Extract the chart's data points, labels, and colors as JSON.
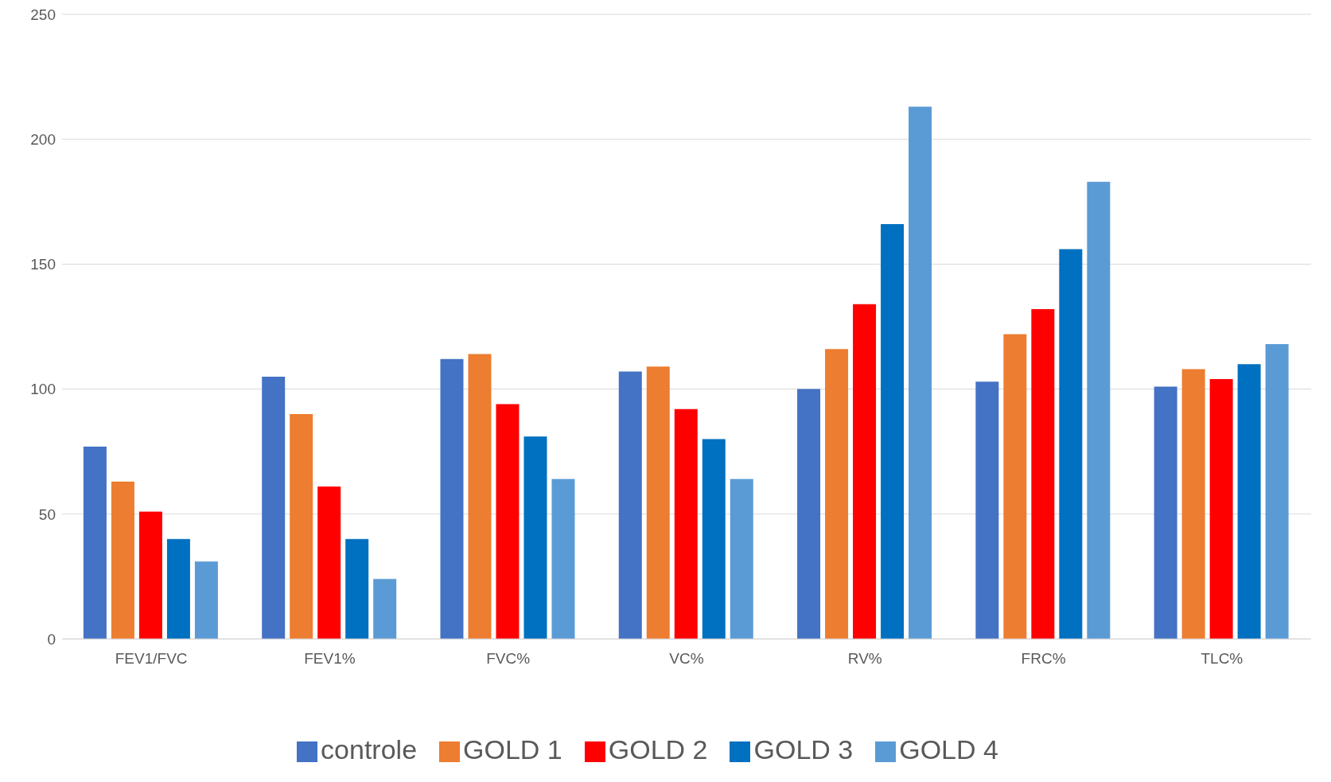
{
  "chart_data": {
    "type": "bar",
    "categories": [
      "FEV1/FVC",
      "FEV1%",
      "FVC%",
      "VC%",
      "RV%",
      "FRC%",
      "TLC%"
    ],
    "series": [
      {
        "name": "controle",
        "color": "#4472c4",
        "values": [
          77,
          105,
          112,
          107,
          100,
          103,
          101
        ]
      },
      {
        "name": "GOLD 1",
        "color": "#ed7d31",
        "values": [
          63,
          90,
          114,
          109,
          116,
          122,
          108
        ]
      },
      {
        "name": "GOLD 2",
        "color": "#ff0000",
        "values": [
          51,
          61,
          94,
          92,
          134,
          132,
          104
        ]
      },
      {
        "name": "GOLD 3",
        "color": "#0070c0",
        "values": [
          40,
          40,
          81,
          80,
          166,
          156,
          110
        ]
      },
      {
        "name": "GOLD 4",
        "color": "#5b9bd5",
        "values": [
          31,
          24,
          64,
          64,
          213,
          183,
          118
        ]
      }
    ],
    "ylim": [
      0,
      250
    ],
    "yticks": [
      0,
      50,
      100,
      150,
      200,
      250
    ],
    "grid": "y",
    "legend": "bottom"
  }
}
